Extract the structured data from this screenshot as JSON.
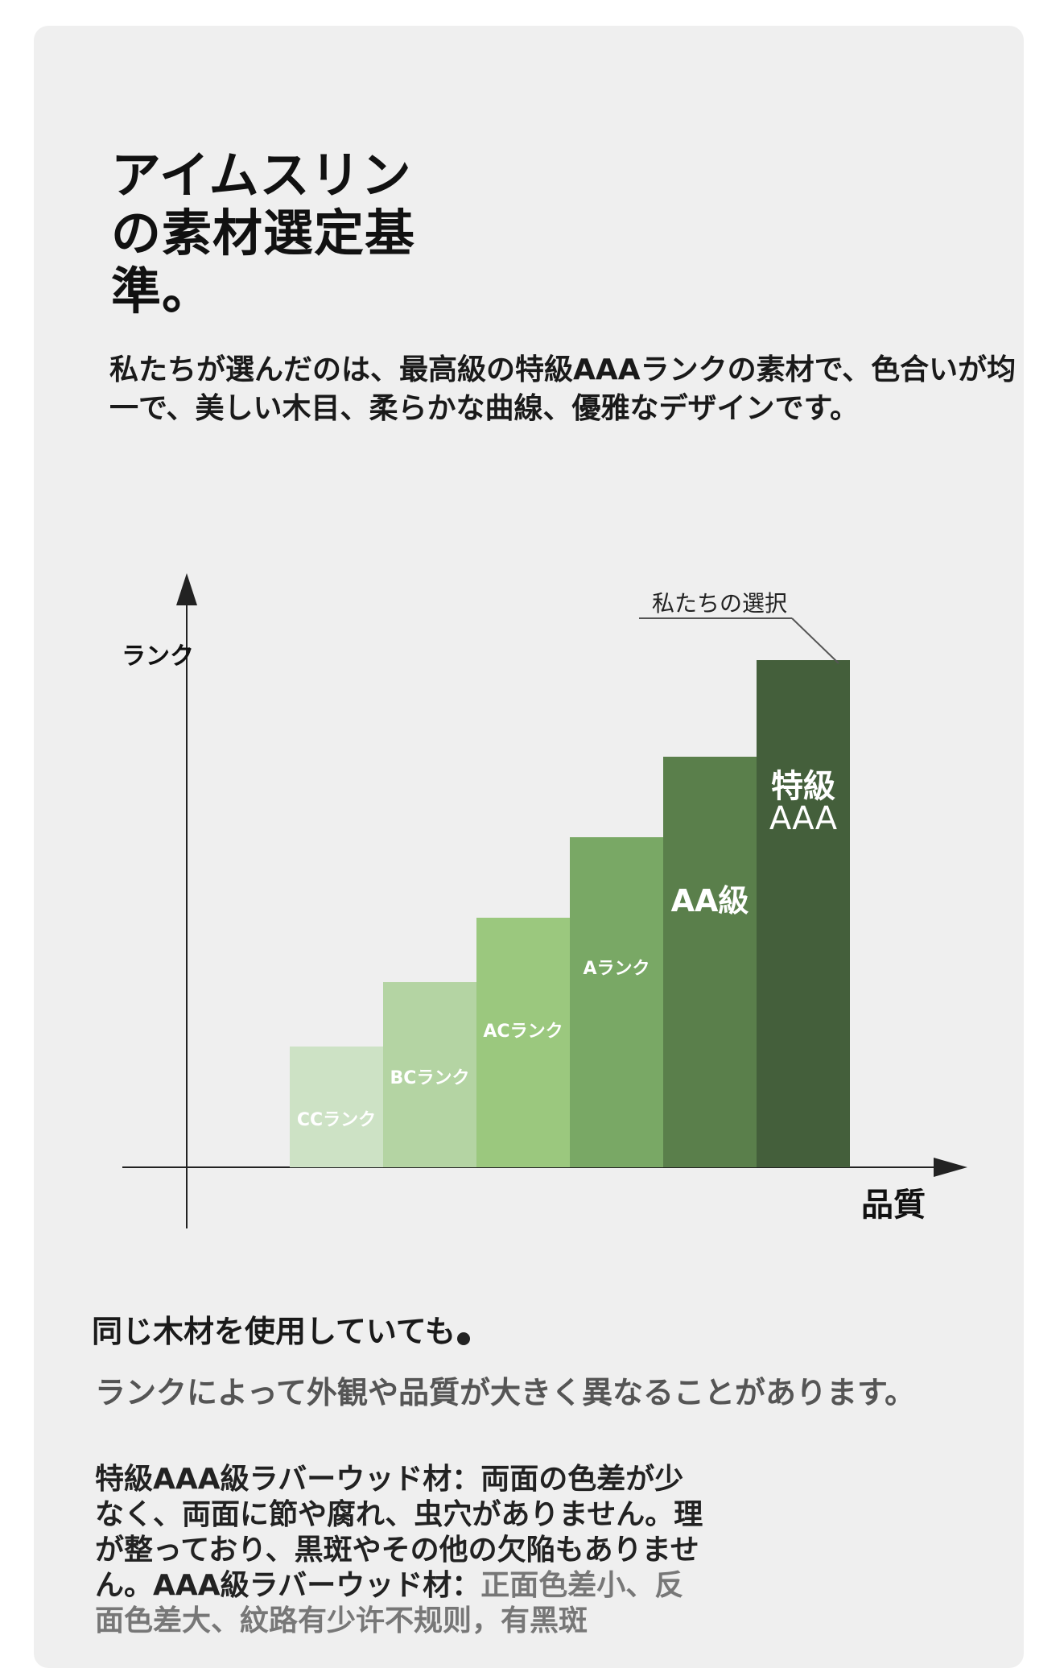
{
  "heading": {
    "title": "アイムスリンの素材選定基準。",
    "intro": "私たちが選んだのは、最高級の特級AAAランクの素材で、色合いが均一で、美しい木目、柔らかな曲線、優雅なデザインです。"
  },
  "chart_data": {
    "type": "bar",
    "categories": [
      "CCランク",
      "BCランク",
      "ACランク",
      "Aランク",
      "AA級",
      "特級AAA"
    ],
    "values": [
      1.5,
      2.3,
      3.1,
      4.1,
      5.1,
      6.3
    ],
    "colors": [
      "#cde2c5",
      "#b4d4a3",
      "#9bc87e",
      "#79a865",
      "#5a7f4b",
      "#445f3b"
    ],
    "label_colors": [
      "#ffffff",
      "#ffffff",
      "#ffffff",
      "#ffffff",
      "#ffffff",
      "#ffffff"
    ],
    "xlabel": "品質",
    "ylabel": "ランク",
    "annotation": "私たちの選択",
    "grid": false,
    "legend": "none"
  },
  "notes": {
    "line1": "同じ木材を使用していても",
    "line2": "ランクによって外観や品質が大きく異なることがあります。",
    "detail": "特級AAA級ラバーウッド材：両面の色差が少なく、両面に節や腐れ、虫穴がありません。理が整っており、黒斑やその他の欠陥もありません。AAA級ラバーウッド材：",
    "detail_more": "正面色差小、反面色差大、紋路有少许不规则，有黑斑"
  }
}
